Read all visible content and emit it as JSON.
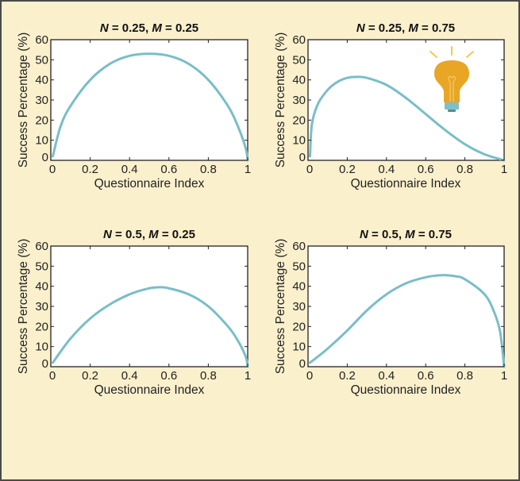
{
  "figure": {
    "background": "#fbf0cc",
    "border_color": "#4a4a48",
    "line_color": "#79bec7",
    "lightbulb": {
      "bulb_color": "#e8a624",
      "base_color": "#7fc0c8",
      "ray_color": "#f3c94a"
    }
  },
  "chart_data": [
    {
      "type": "line",
      "title": "N = 0.25, M = 0.25",
      "title_parts": {
        "n_label": "N",
        "n_value": "0.25",
        "m_label": "M",
        "m_value": "0.25"
      },
      "xlabel": "Questionnaire Index",
      "ylabel": "Success Percentage (%)",
      "xlim": [
        0,
        1
      ],
      "ylim": [
        0,
        60
      ],
      "xticks": [
        "0",
        "0.2",
        "0.4",
        "0.6",
        "0.8",
        "1"
      ],
      "yticks": [
        "0",
        "10",
        "20",
        "30",
        "40",
        "50",
        "60"
      ],
      "grid": false,
      "series": [
        {
          "name": "success",
          "x": [
            0.01,
            0.05,
            0.1,
            0.2,
            0.3,
            0.4,
            0.5,
            0.6,
            0.7,
            0.8,
            0.9,
            0.95,
            0.99,
            1.0
          ],
          "y": [
            2,
            17,
            27,
            40,
            48,
            52,
            53,
            52,
            48,
            40,
            27,
            17,
            6,
            0
          ]
        }
      ]
    },
    {
      "type": "line",
      "title": "N = 0.25, M = 0.75",
      "title_parts": {
        "n_label": "N",
        "n_value": "0.25",
        "m_label": "M",
        "m_value": "0.75"
      },
      "xlabel": "Questionnaire Index",
      "ylabel": "Success Percentage (%)",
      "xlim": [
        0,
        1
      ],
      "ylim": [
        0,
        60
      ],
      "xticks": [
        "0",
        "0.2",
        "0.4",
        "0.6",
        "0.8",
        "1"
      ],
      "yticks": [
        "0",
        "10",
        "20",
        "30",
        "40",
        "50",
        "60"
      ],
      "grid": false,
      "annotation": "lightbulb-icon",
      "series": [
        {
          "name": "success",
          "x": [
            0.01,
            0.02,
            0.05,
            0.1,
            0.15,
            0.2,
            0.25,
            0.3,
            0.4,
            0.5,
            0.6,
            0.7,
            0.8,
            0.9,
            1.0
          ],
          "y": [
            2,
            18,
            28,
            35,
            39,
            41,
            41.5,
            41,
            37.5,
            31,
            23,
            15,
            8,
            3,
            0
          ]
        }
      ]
    },
    {
      "type": "line",
      "title": "N = 0.5, M = 0.25",
      "title_parts": {
        "n_label": "N",
        "n_value": "0.5",
        "m_label": "M",
        "m_value": "0.25"
      },
      "xlabel": "Questionnaire Index",
      "ylabel": "Success Percentage (%)",
      "xlim": [
        0,
        1
      ],
      "ylim": [
        0,
        60
      ],
      "xticks": [
        "0",
        "0.2",
        "0.4",
        "0.6",
        "0.8",
        "1"
      ],
      "yticks": [
        "0",
        "10",
        "20",
        "30",
        "40",
        "50",
        "60"
      ],
      "grid": false,
      "series": [
        {
          "name": "success",
          "x": [
            0.01,
            0.1,
            0.2,
            0.3,
            0.4,
            0.5,
            0.56,
            0.6,
            0.7,
            0.8,
            0.9,
            0.95,
            0.99,
            1.0
          ],
          "y": [
            2,
            14,
            24,
            31,
            36,
            39,
            39.5,
            39,
            36,
            30,
            20,
            13,
            5,
            0
          ]
        }
      ]
    },
    {
      "type": "line",
      "title": "N = 0.5, M = 0.75",
      "title_parts": {
        "n_label": "N",
        "n_value": "0.5",
        "m_label": "M",
        "m_value": "0.75"
      },
      "xlabel": "Questionnaire Index",
      "ylabel": "Success Percentage (%)",
      "xlim": [
        0,
        1
      ],
      "ylim": [
        0,
        60
      ],
      "xticks": [
        "0",
        "0.2",
        "0.4",
        "0.6",
        "0.8",
        "1"
      ],
      "yticks": [
        "0",
        "10",
        "20",
        "30",
        "40",
        "50",
        "60"
      ],
      "grid": false,
      "series": [
        {
          "name": "success",
          "x": [
            0.01,
            0.1,
            0.2,
            0.3,
            0.4,
            0.5,
            0.6,
            0.68,
            0.75,
            0.8,
            0.9,
            0.95,
            0.98,
            1.0
          ],
          "y": [
            2,
            9,
            18,
            28,
            36,
            41.5,
            44.5,
            45.5,
            45,
            43.5,
            36,
            27,
            17,
            0
          ]
        }
      ]
    }
  ]
}
